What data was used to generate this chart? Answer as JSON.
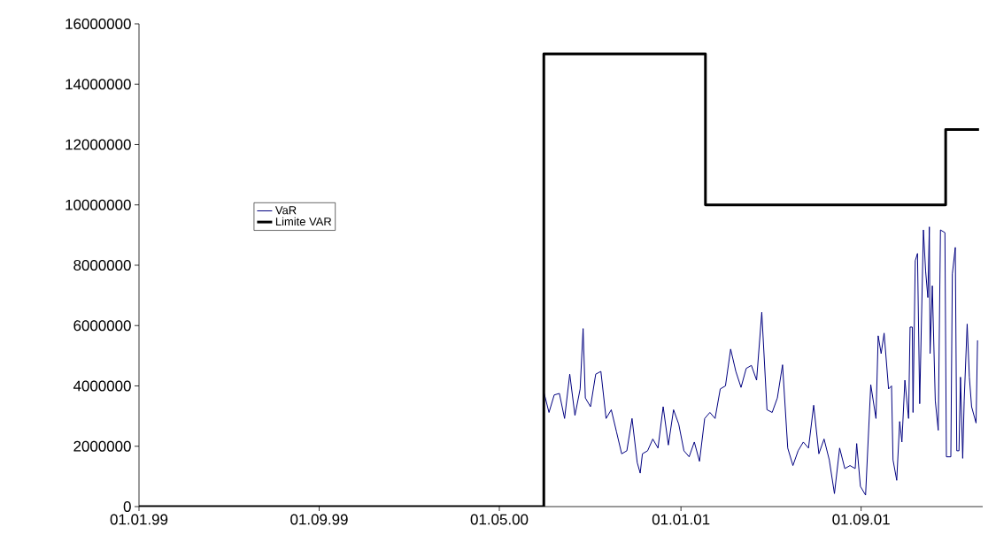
{
  "chart_data": {
    "type": "line",
    "xlim": [
      "1999-01-01",
      "2002-02-12"
    ],
    "xticks": [
      {
        "value": "1999-01-01",
        "label": "01.01.99"
      },
      {
        "value": "1999-09-01",
        "label": "01.09.99"
      },
      {
        "value": "2000-05-01",
        "label": "01.05.00"
      },
      {
        "value": "2001-01-01",
        "label": "01.01.01"
      },
      {
        "value": "2001-09-01",
        "label": "01.09.01"
      }
    ],
    "ylim": [
      0,
      16000000
    ],
    "yticks": [
      0,
      2000000,
      4000000,
      6000000,
      8000000,
      10000000,
      12000000,
      14000000,
      16000000
    ],
    "grid": false,
    "legend": "left",
    "marker": "none",
    "series": [
      {
        "name": "VaR",
        "color": "#000080",
        "x": [
          "2000-06-30",
          "2000-07-07",
          "2000-07-14",
          "2000-07-21",
          "2000-07-28",
          "2000-08-04",
          "2000-08-11",
          "2000-08-18",
          "2000-08-22",
          "2000-08-25",
          "2000-09-01",
          "2000-09-08",
          "2000-09-15",
          "2000-09-22",
          "2000-09-29",
          "2000-10-06",
          "2000-10-13",
          "2000-10-20",
          "2000-10-27",
          "2000-11-03",
          "2000-11-07",
          "2000-11-10",
          "2000-11-17",
          "2000-11-24",
          "2000-12-01",
          "2000-12-08",
          "2000-12-15",
          "2000-12-22",
          "2000-12-29",
          "2001-01-05",
          "2001-01-12",
          "2001-01-19",
          "2001-01-26",
          "2001-02-02",
          "2001-02-09",
          "2001-02-16",
          "2001-02-23",
          "2001-03-02",
          "2001-03-09",
          "2001-03-16",
          "2001-03-23",
          "2001-03-30",
          "2001-04-06",
          "2001-04-13",
          "2001-04-20",
          "2001-04-27",
          "2001-05-04",
          "2001-05-11",
          "2001-05-18",
          "2001-05-25",
          "2001-06-01",
          "2001-06-08",
          "2001-06-15",
          "2001-06-22",
          "2001-06-29",
          "2001-07-06",
          "2001-07-13",
          "2001-07-20",
          "2001-07-27",
          "2001-08-03",
          "2001-08-10",
          "2001-08-17",
          "2001-08-24",
          "2001-08-26",
          "2001-08-31",
          "2001-09-07",
          "2001-09-14",
          "2001-09-21",
          "2001-09-24",
          "2001-09-28",
          "2001-10-02",
          "2001-10-08",
          "2001-10-12",
          "2001-10-14",
          "2001-10-19",
          "2001-10-23",
          "2001-10-26",
          "2001-10-30",
          "2001-11-04",
          "2001-11-06",
          "2001-11-09",
          "2001-11-10",
          "2001-11-13",
          "2001-11-16",
          "2001-11-19",
          "2001-11-24",
          "2001-11-27",
          "2001-11-30",
          "2001-12-02",
          "2001-12-03",
          "2001-12-06",
          "2001-12-10",
          "2001-12-14",
          "2001-12-17",
          "2001-12-23",
          "2001-12-25",
          "2001-12-31",
          "2002-01-02",
          "2002-01-06",
          "2002-01-08",
          "2002-01-11",
          "2002-01-13",
          "2002-01-16",
          "2002-01-18",
          "2002-01-22",
          "2002-01-25",
          "2002-01-28",
          "2002-02-03",
          "2002-02-05"
        ],
        "values": [
          3800000,
          3120000,
          3700000,
          3750000,
          2920000,
          4390000,
          3020000,
          3900000,
          5900000,
          3600000,
          3310000,
          4390000,
          4480000,
          2920000,
          3210000,
          2480000,
          1750000,
          1850000,
          2920000,
          1460000,
          1110000,
          1750000,
          1850000,
          2240000,
          1940000,
          3310000,
          2040000,
          3210000,
          2730000,
          1850000,
          1650000,
          2140000,
          1500000,
          2920000,
          3120000,
          2920000,
          3900000,
          4000000,
          5220000,
          4480000,
          3950000,
          4580000,
          4680000,
          4190000,
          6440000,
          3210000,
          3120000,
          3600000,
          4700000,
          1940000,
          1360000,
          1850000,
          2140000,
          1940000,
          3360000,
          1750000,
          2240000,
          1550000,
          430000,
          1940000,
          1260000,
          1360000,
          1260000,
          2090000,
          670000,
          380000,
          4040000,
          2920000,
          5660000,
          5070000,
          5750000,
          3900000,
          4000000,
          1550000,
          870000,
          2820000,
          2140000,
          4190000,
          2920000,
          5950000,
          5950000,
          3120000,
          8150000,
          8390000,
          3410000,
          9170000,
          7800000,
          6930000,
          9270000,
          5070000,
          7320000,
          3510000,
          2530000,
          9170000,
          9080000,
          1650000,
          1650000,
          7710000,
          8590000,
          1850000,
          1850000,
          4290000,
          1600000,
          3510000,
          6050000,
          4290000,
          3310000,
          2770000,
          5510000
        ]
      },
      {
        "name": "Limite VAR",
        "color": "#000000",
        "x": [
          "1999-01-01",
          "2000-06-30",
          "2000-06-30",
          "2001-02-03",
          "2001-02-03",
          "2001-12-24",
          "2001-12-24",
          "2002-02-07"
        ],
        "values": [
          0,
          0,
          15000000,
          15000000,
          10000000,
          10000000,
          12500000,
          12500000
        ]
      }
    ]
  }
}
